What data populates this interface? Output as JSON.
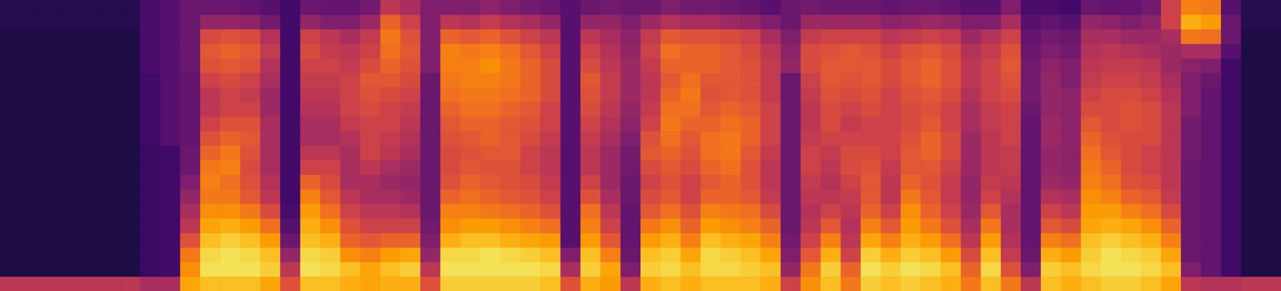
{
  "chart_data": {
    "type": "heatmap",
    "tick_labels": false,
    "zlim": [
      0,
      100
    ],
    "cells": [
      [
        50,
        12,
        12,
        12,
        12,
        12,
        12,
        12,
        12,
        12,
        12,
        12,
        12,
        12,
        12,
        12,
        12,
        12,
        14,
        14
      ],
      [
        50,
        12,
        12,
        12,
        12,
        12,
        12,
        12,
        12,
        12,
        12,
        12,
        12,
        12,
        12,
        12,
        12,
        12,
        14,
        14
      ],
      [
        50,
        12,
        12,
        12,
        12,
        12,
        12,
        12,
        12,
        12,
        12,
        12,
        12,
        12,
        12,
        12,
        12,
        12,
        14,
        14
      ],
      [
        50,
        12,
        12,
        12,
        12,
        12,
        12,
        12,
        12,
        12,
        12,
        12,
        12,
        12,
        12,
        12,
        12,
        12,
        14,
        14
      ],
      [
        50,
        12,
        12,
        12,
        12,
        12,
        12,
        12,
        12,
        12,
        12,
        12,
        12,
        12,
        12,
        12,
        12,
        12,
        14,
        14
      ],
      [
        50,
        12,
        12,
        12,
        12,
        12,
        12,
        12,
        12,
        12,
        12,
        12,
        12,
        12,
        12,
        12,
        12,
        12,
        14,
        14
      ],
      [
        50,
        12,
        12,
        12,
        12,
        12,
        12,
        12,
        12,
        12,
        12,
        12,
        12,
        12,
        12,
        12,
        12,
        12,
        14,
        14
      ],
      [
        45,
        18,
        18,
        18,
        18,
        18,
        18,
        18,
        18,
        18,
        20,
        20,
        20,
        20,
        20,
        22,
        22,
        22,
        22,
        22
      ],
      [
        45,
        20,
        20,
        20,
        20,
        20,
        20,
        20,
        20,
        20,
        25,
        25,
        25,
        25,
        25,
        25,
        25,
        25,
        25,
        25
      ],
      [
        80,
        75,
        70,
        60,
        50,
        45,
        40,
        35,
        30,
        30,
        28,
        28,
        28,
        28,
        28,
        30,
        30,
        30,
        30,
        30
      ],
      [
        85,
        92,
        90,
        85,
        80,
        75,
        70,
        72,
        70,
        65,
        60,
        55,
        50,
        50,
        55,
        60,
        62,
        58,
        40,
        30
      ],
      [
        85,
        92,
        92,
        88,
        82,
        75,
        70,
        68,
        72,
        70,
        65,
        60,
        55,
        55,
        58,
        62,
        65,
        60,
        40,
        30
      ],
      [
        85,
        92,
        90,
        85,
        78,
        70,
        62,
        60,
        58,
        60,
        62,
        60,
        55,
        52,
        55,
        60,
        62,
        58,
        38,
        28
      ],
      [
        80,
        88,
        85,
        78,
        68,
        58,
        50,
        48,
        45,
        45,
        45,
        45,
        42,
        42,
        45,
        48,
        52,
        48,
        32,
        25
      ],
      [
        60,
        50,
        40,
        30,
        25,
        22,
        20,
        20,
        20,
        20,
        20,
        20,
        20,
        20,
        20,
        20,
        20,
        20,
        20,
        20
      ],
      [
        85,
        92,
        90,
        85,
        82,
        78,
        72,
        65,
        55,
        50,
        45,
        45,
        48,
        50,
        52,
        55,
        58,
        55,
        40,
        30
      ],
      [
        85,
        90,
        88,
        82,
        75,
        68,
        62,
        58,
        55,
        50,
        45,
        45,
        48,
        50,
        52,
        55,
        52,
        50,
        35,
        28
      ],
      [
        82,
        85,
        75,
        65,
        60,
        55,
        50,
        45,
        45,
        45,
        48,
        52,
        55,
        55,
        55,
        52,
        50,
        45,
        35,
        28
      ],
      [
        80,
        80,
        72,
        62,
        55,
        50,
        45,
        45,
        50,
        55,
        55,
        55,
        58,
        60,
        62,
        58,
        55,
        52,
        42,
        32
      ],
      [
        82,
        85,
        78,
        65,
        55,
        50,
        45,
        42,
        45,
        50,
        52,
        55,
        55,
        58,
        62,
        65,
        68,
        70,
        65,
        50
      ],
      [
        82,
        88,
        80,
        65,
        55,
        48,
        42,
        40,
        42,
        45,
        48,
        50,
        52,
        55,
        58,
        60,
        62,
        60,
        55,
        45
      ],
      [
        60,
        50,
        40,
        35,
        32,
        30,
        30,
        30,
        30,
        30,
        30,
        30,
        30,
        30,
        30,
        35,
        35,
        35,
        35,
        35
      ],
      [
        88,
        92,
        90,
        82,
        75,
        72,
        65,
        60,
        58,
        58,
        60,
        62,
        65,
        68,
        70,
        72,
        72,
        65,
        50,
        35
      ],
      [
        88,
        92,
        90,
        85,
        78,
        72,
        68,
        65,
        62,
        60,
        62,
        65,
        68,
        70,
        72,
        72,
        70,
        62,
        48,
        35
      ],
      [
        88,
        92,
        92,
        85,
        78,
        70,
        65,
        62,
        60,
        62,
        65,
        65,
        68,
        70,
        72,
        75,
        72,
        65,
        52,
        38
      ],
      [
        88,
        92,
        90,
        82,
        75,
        68,
        62,
        60,
        60,
        62,
        62,
        62,
        65,
        68,
        70,
        70,
        68,
        60,
        48,
        35
      ],
      [
        88,
        92,
        88,
        80,
        72,
        65,
        60,
        58,
        55,
        55,
        58,
        60,
        62,
        65,
        65,
        65,
        62,
        55,
        45,
        32
      ],
      [
        85,
        90,
        85,
        78,
        68,
        60,
        55,
        52,
        50,
        50,
        52,
        55,
        55,
        58,
        58,
        58,
        55,
        50,
        40,
        30
      ],
      [
        60,
        45,
        35,
        25,
        25,
        25,
        25,
        25,
        25,
        25,
        25,
        25,
        25,
        25,
        25,
        25,
        25,
        25,
        25,
        25
      ],
      [
        82,
        88,
        85,
        78,
        72,
        68,
        60,
        55,
        50,
        50,
        52,
        55,
        58,
        60,
        62,
        58,
        55,
        50,
        40,
        30
      ],
      [
        78,
        80,
        72,
        62,
        55,
        50,
        45,
        42,
        42,
        42,
        45,
        48,
        50,
        52,
        52,
        50,
        48,
        45,
        40,
        32
      ],
      [
        50,
        35,
        30,
        28,
        28,
        28,
        30,
        30,
        32,
        32,
        35,
        38,
        40,
        42,
        42,
        42,
        40,
        38,
        35,
        30
      ],
      [
        82,
        88,
        85,
        78,
        70,
        62,
        58,
        55,
        58,
        62,
        60,
        55,
        52,
        50,
        50,
        52,
        55,
        52,
        42,
        30
      ],
      [
        85,
        90,
        88,
        82,
        75,
        68,
        62,
        60,
        62,
        65,
        68,
        70,
        68,
        65,
        62,
        65,
        68,
        62,
        48,
        35
      ],
      [
        82,
        85,
        80,
        72,
        65,
        60,
        55,
        55,
        58,
        60,
        62,
        65,
        68,
        70,
        68,
        65,
        65,
        60,
        45,
        32
      ],
      [
        85,
        90,
        90,
        85,
        78,
        72,
        65,
        62,
        65,
        68,
        68,
        65,
        62,
        60,
        62,
        65,
        65,
        60,
        45,
        32
      ],
      [
        85,
        90,
        88,
        82,
        75,
        70,
        65,
        65,
        68,
        70,
        70,
        68,
        65,
        62,
        62,
        62,
        62,
        58,
        42,
        30
      ],
      [
        85,
        88,
        85,
        80,
        72,
        68,
        62,
        60,
        60,
        62,
        65,
        65,
        62,
        60,
        60,
        60,
        58,
        55,
        40,
        28
      ],
      [
        82,
        85,
        80,
        72,
        65,
        58,
        52,
        50,
        50,
        52,
        55,
        55,
        55,
        52,
        52,
        52,
        50,
        45,
        35,
        25
      ],
      [
        55,
        40,
        35,
        32,
        30,
        30,
        30,
        30,
        30,
        30,
        30,
        30,
        30,
        30,
        30,
        40,
        38,
        35,
        30,
        30
      ],
      [
        75,
        70,
        62,
        55,
        50,
        48,
        50,
        52,
        55,
        55,
        52,
        50,
        50,
        52,
        55,
        58,
        58,
        52,
        42,
        32
      ],
      [
        85,
        88,
        82,
        72,
        62,
        55,
        50,
        48,
        50,
        52,
        55,
        58,
        58,
        60,
        62,
        62,
        60,
        55,
        42,
        30
      ],
      [
        70,
        65,
        55,
        50,
        48,
        50,
        52,
        55,
        58,
        58,
        55,
        52,
        55,
        58,
        60,
        62,
        62,
        55,
        42,
        30
      ],
      [
        88,
        92,
        88,
        80,
        72,
        65,
        62,
        62,
        60,
        58,
        55,
        55,
        58,
        60,
        62,
        62,
        60,
        55,
        42,
        30
      ],
      [
        85,
        88,
        82,
        72,
        62,
        55,
        50,
        50,
        52,
        55,
        55,
        55,
        55,
        55,
        58,
        58,
        55,
        50,
        38,
        28
      ],
      [
        88,
        92,
        88,
        82,
        78,
        75,
        70,
        65,
        62,
        62,
        60,
        58,
        58,
        60,
        62,
        62,
        60,
        52,
        40,
        30
      ],
      [
        85,
        90,
        85,
        78,
        70,
        65,
        62,
        60,
        62,
        65,
        65,
        62,
        60,
        62,
        65,
        65,
        62,
        55,
        42,
        30
      ],
      [
        82,
        85,
        78,
        68,
        60,
        55,
        52,
        52,
        55,
        58,
        58,
        55,
        55,
        58,
        60,
        60,
        58,
        52,
        40,
        28
      ],
      [
        70,
        65,
        58,
        50,
        45,
        42,
        40,
        40,
        42,
        42,
        42,
        45,
        45,
        48,
        50,
        50,
        48,
        42,
        35,
        25
      ],
      [
        85,
        90,
        85,
        78,
        70,
        62,
        55,
        52,
        50,
        50,
        50,
        52,
        52,
        55,
        55,
        55,
        52,
        48,
        35,
        25
      ],
      [
        70,
        60,
        52,
        48,
        45,
        45,
        48,
        50,
        52,
        52,
        55,
        55,
        55,
        58,
        60,
        62,
        60,
        55,
        45,
        35
      ],
      [
        50,
        35,
        30,
        28,
        28,
        28,
        28,
        28,
        28,
        28,
        28,
        28,
        30,
        32,
        32,
        32,
        30,
        28,
        25,
        22
      ],
      [
        85,
        88,
        82,
        72,
        62,
        55,
        48,
        42,
        40,
        40,
        42,
        42,
        40,
        40,
        40,
        38,
        35,
        32,
        28,
        22
      ],
      [
        82,
        85,
        78,
        68,
        58,
        50,
        45,
        40,
        38,
        38,
        38,
        38,
        38,
        38,
        35,
        35,
        32,
        30,
        25,
        20
      ],
      [
        85,
        90,
        88,
        85,
        80,
        78,
        75,
        72,
        70,
        68,
        65,
        62,
        58,
        55,
        52,
        50,
        48,
        45,
        40,
        30
      ],
      [
        88,
        92,
        92,
        88,
        82,
        78,
        72,
        68,
        65,
        62,
        60,
        58,
        58,
        58,
        55,
        52,
        50,
        45,
        38,
        28
      ],
      [
        88,
        92,
        90,
        85,
        80,
        72,
        65,
        60,
        58,
        58,
        58,
        60,
        60,
        58,
        55,
        52,
        48,
        42,
        35,
        28
      ],
      [
        85,
        90,
        88,
        82,
        75,
        68,
        62,
        58,
        55,
        55,
        58,
        58,
        58,
        55,
        52,
        50,
        45,
        42,
        38,
        32
      ],
      [
        80,
        85,
        80,
        72,
        65,
        58,
        52,
        50,
        50,
        50,
        50,
        50,
        50,
        48,
        45,
        42,
        42,
        45,
        55,
        55
      ],
      [
        50,
        35,
        30,
        30,
        30,
        30,
        30,
        30,
        30,
        32,
        32,
        32,
        35,
        35,
        35,
        38,
        45,
        70,
        82,
        72
      ],
      [
        48,
        28,
        28,
        28,
        28,
        28,
        28,
        28,
        28,
        28,
        28,
        28,
        28,
        28,
        30,
        35,
        45,
        68,
        78,
        70
      ],
      [
        48,
        20,
        20,
        20,
        20,
        20,
        20,
        20,
        20,
        20,
        20,
        20,
        20,
        20,
        20,
        20,
        25,
        30,
        30,
        25
      ],
      [
        50,
        12,
        12,
        12,
        12,
        12,
        12,
        12,
        12,
        12,
        12,
        12,
        12,
        12,
        12,
        12,
        12,
        12,
        14,
        14
      ],
      [
        50,
        12,
        12,
        12,
        12,
        12,
        12,
        12,
        12,
        12,
        12,
        12,
        12,
        12,
        12,
        12,
        12,
        12,
        14,
        14
      ]
    ]
  }
}
